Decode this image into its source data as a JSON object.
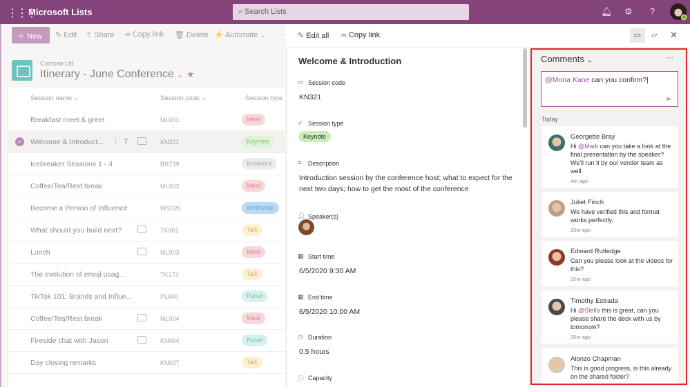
{
  "app": {
    "name": "Microsoft Lists",
    "search_placeholder": "Search Lists"
  },
  "toolbar": {
    "new": "New",
    "edit": "Edit",
    "share": "Share",
    "copy_link": "Copy link",
    "delete": "Delete",
    "automate": "Automate",
    "more": "···"
  },
  "list": {
    "org": "Contoso Ltd",
    "title": "Itinerary - June Conference",
    "columns": [
      "Session name",
      "Session code",
      "Session type"
    ],
    "rows": [
      {
        "name": "Breakfast meet & greet",
        "code": "ML001",
        "type": "Meal",
        "comment": false
      },
      {
        "name": "Welcome & Introduct...",
        "code": "KN321",
        "type": "Keynote",
        "comment": false,
        "selected": true
      },
      {
        "name": "Icebreaker Sessions 1 - 4",
        "code": "BR739",
        "type": "Breakout",
        "comment": false
      },
      {
        "name": "Coffee/Tea/Rest break",
        "code": "ML002",
        "type": "Meal",
        "comment": false
      },
      {
        "name": "Become a Person of Influence",
        "code": "WS026",
        "type": "Workshop",
        "comment": false
      },
      {
        "name": "What should you build next?",
        "code": "TK961",
        "type": "Talk",
        "comment": true
      },
      {
        "name": "Lunch",
        "code": "ML003",
        "type": "Meal",
        "comment": true
      },
      {
        "name": "The evolution of emoji usag...",
        "code": "TK173",
        "type": "Talk",
        "comment": false
      },
      {
        "name": "TikTok 101: Brands and Influe...",
        "code": "PL840",
        "type": "Panel",
        "comment": false
      },
      {
        "name": "Coffee/Tea/Rest break",
        "code": "ML004",
        "type": "Meal",
        "comment": true
      },
      {
        "name": "Fireside chat with Jason",
        "code": "KN064",
        "type": "Panel",
        "comment": true
      },
      {
        "name": "Day closing remarks",
        "code": "KN037",
        "type": "Talk",
        "comment": false
      }
    ]
  },
  "tag_colors": {
    "Meal": [
      "#f8d7da",
      "#d98a93"
    ],
    "Keynote": [
      "#dff3d8",
      "#8fbf7f"
    ],
    "Breakout": [
      "#eeebf0",
      "#b0aab3"
    ],
    "Workshop": [
      "#b7dcf7",
      "#6f9cc4"
    ],
    "Talk": [
      "#fcf0d2",
      "#d4b36e"
    ],
    "Panel": [
      "#d7f1ee",
      "#7bbdb3"
    ]
  },
  "detail": {
    "edit_all": "Edit all",
    "copy_link": "Copy link",
    "title": "Welcome & Introduction",
    "fields": [
      {
        "label": "Session code",
        "value": "KN321"
      },
      {
        "label": "Session type",
        "value": "Keynote"
      },
      {
        "label": "Description",
        "value": "Introduction session by the conference host; what to expect for the next two days; how to get the most of the conference"
      },
      {
        "label": "Speaker(s)",
        "value": ""
      },
      {
        "label": "Start time",
        "value": "6/5/2020 9:30 AM"
      },
      {
        "label": "End time",
        "value": "6/5/2020 10:00 AM"
      },
      {
        "label": "Duration",
        "value": "0.5 hours"
      },
      {
        "label": "Capacity",
        "value": ""
      }
    ]
  },
  "comments": {
    "title": "Comments",
    "input_mention": "@Mona Kane",
    "input_text": " can you confirm?",
    "group": "Today",
    "items": [
      {
        "author": "Georgette Bray",
        "mention": "@Mark",
        "pre": "Hi ",
        "text": " can you take a look at the final presentation by the speaker? We'll run it by our vendor team as well.",
        "time": "4m ago"
      },
      {
        "author": "Juliet Finch",
        "pre": "",
        "mention": "",
        "text": "We have verified this and format works perfectly.",
        "time": "20m ago"
      },
      {
        "author": "Edward Rutledge",
        "pre": "",
        "mention": "",
        "text": "Can you please look at the videos for this?",
        "time": "25m ago"
      },
      {
        "author": "Timothy Estrada",
        "pre": "Hi ",
        "mention": "@Stella",
        "text": " this is great, can you please share the deck with us by tomorrow?",
        "time": "35m ago"
      },
      {
        "author": "Alonzo Chapman",
        "pre": "",
        "mention": "",
        "text": "This is good progress, is this already on the shared folder?",
        "time": ""
      }
    ]
  },
  "colors": {
    "brand": "#84437a",
    "highlight": "#e3252b"
  }
}
